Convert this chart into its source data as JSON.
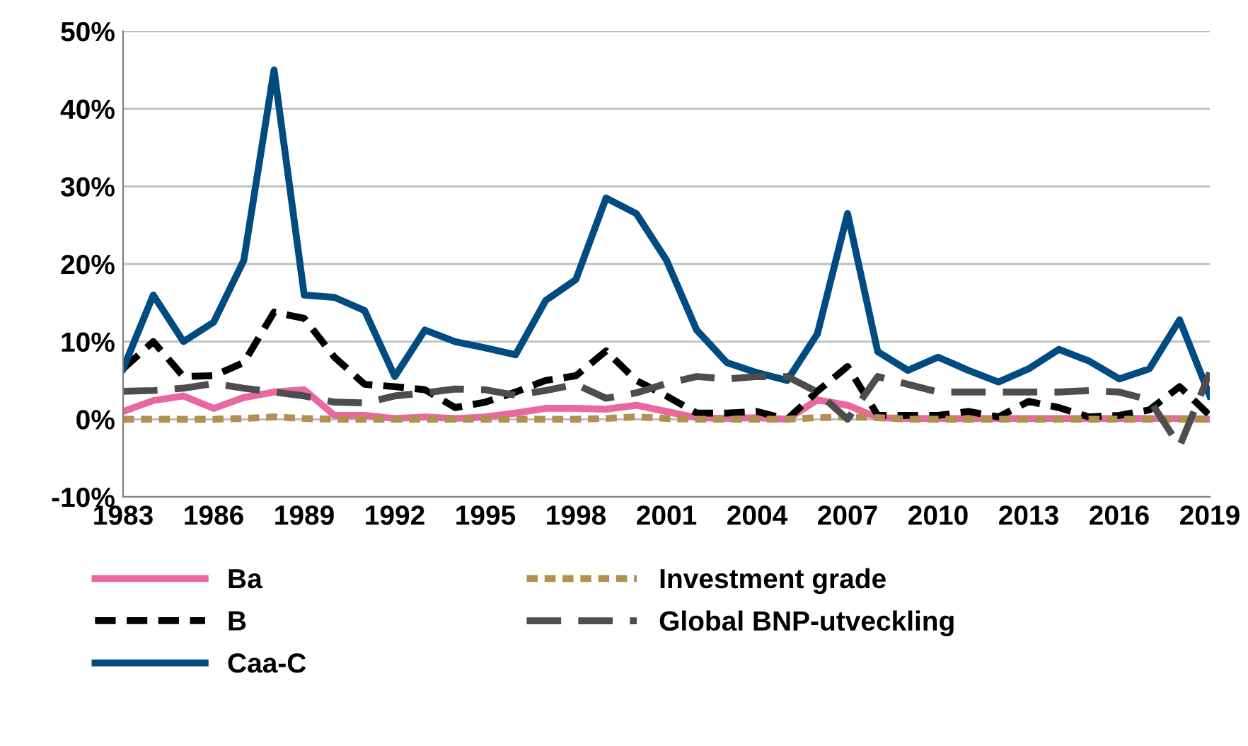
{
  "chart_data": {
    "type": "line",
    "x": [
      1983,
      1984,
      1985,
      1986,
      1987,
      1988,
      1989,
      1990,
      1991,
      1992,
      1993,
      1994,
      1995,
      1996,
      1997,
      1998,
      1999,
      2000,
      2001,
      2002,
      2003,
      2004,
      2005,
      2006,
      2007,
      2008,
      2009,
      2010,
      2011,
      2012,
      2013,
      2014,
      2015,
      2016,
      2017,
      2018,
      2019
    ],
    "xlim": [
      1983,
      2019
    ],
    "xticks": [
      1983,
      1986,
      1989,
      1992,
      1995,
      1998,
      2001,
      2004,
      2007,
      2010,
      2013,
      2016,
      2019
    ],
    "ylim": [
      -10,
      50
    ],
    "yticks": [
      {
        "value": -10,
        "label": "-10%"
      },
      {
        "value": 0,
        "label": "0%"
      },
      {
        "value": 10,
        "label": "10%"
      },
      {
        "value": 20,
        "label": "20%"
      },
      {
        "value": 30,
        "label": "30%"
      },
      {
        "value": 40,
        "label": "40%"
      },
      {
        "value": 50,
        "label": "50%"
      }
    ],
    "grid": "y",
    "legend": "bottom",
    "marker": "none",
    "series": [
      {
        "name": "Ba",
        "color": "#e8699f",
        "line_style": "solid",
        "values": [
          1,
          2.4,
          3,
          1.4,
          2.8,
          3.5,
          3.8,
          0.5,
          0.5,
          0.1,
          0.3,
          0.1,
          0.3,
          0.8,
          1.4,
          1.4,
          1.3,
          1.8,
          1,
          0.2,
          0.1,
          0.2,
          0,
          2.5,
          1.8,
          0.2,
          0.1,
          0.1,
          0.1,
          0.1,
          0.1,
          0.1,
          0.1,
          0.1,
          0.1,
          0.1,
          0
        ]
      },
      {
        "name": "B",
        "color": "#000000",
        "line_style": "dashed",
        "values": [
          6.5,
          10,
          5.5,
          5.6,
          7.3,
          13.8,
          13,
          8,
          4.5,
          4.2,
          3.8,
          1.5,
          2.2,
          3.5,
          5,
          5.6,
          8.8,
          5,
          3,
          0.8,
          0.8,
          1,
          0,
          3.6,
          6.8,
          0.5,
          0.5,
          0.5,
          1,
          0.3,
          2.3,
          1.5,
          0.3,
          0.5,
          1.2,
          4.2,
          0.5
        ]
      },
      {
        "name": "Caa-C",
        "color": "#004b7f",
        "line_style": "solid",
        "values": [
          6.5,
          16,
          10,
          12.5,
          20.5,
          45,
          16,
          15.7,
          14,
          5.5,
          11.5,
          10,
          9.2,
          8.3,
          15.3,
          18,
          28.5,
          26.5,
          20.5,
          11.5,
          7.3,
          6,
          5,
          11,
          26.5,
          8.7,
          6.3,
          8,
          6.3,
          4.8,
          6.5,
          9,
          7.5,
          5.2,
          6.5,
          12.8,
          3
        ]
      },
      {
        "name": "Investment grade",
        "color": "#b0914f",
        "line_style": "dotted",
        "values": [
          0,
          0,
          0,
          0,
          0.1,
          0.3,
          0.1,
          0,
          0,
          0,
          0,
          0,
          0,
          0,
          0,
          0,
          0.1,
          0.3,
          0.1,
          0,
          0,
          0,
          0,
          0.2,
          0.3,
          0.2,
          0,
          0,
          0,
          0,
          0,
          0,
          0,
          0,
          0,
          0,
          0
        ]
      },
      {
        "name": "Global BNP-utveckling",
        "color": "#4d4d4d",
        "line_style": "longdash",
        "values": [
          3.6,
          3.7,
          4,
          4.6,
          4,
          3.5,
          3,
          2.2,
          2.1,
          3,
          3.4,
          3.9,
          3.8,
          3.1,
          3.7,
          4.5,
          2.7,
          3.4,
          4.6,
          5.5,
          5.2,
          5.5,
          5.5,
          3.5,
          0,
          5.5,
          4.5,
          3.5,
          3.5,
          3.5,
          3.5,
          3.5,
          3.7,
          3.5,
          2.5,
          -3.5,
          6
        ]
      }
    ]
  }
}
